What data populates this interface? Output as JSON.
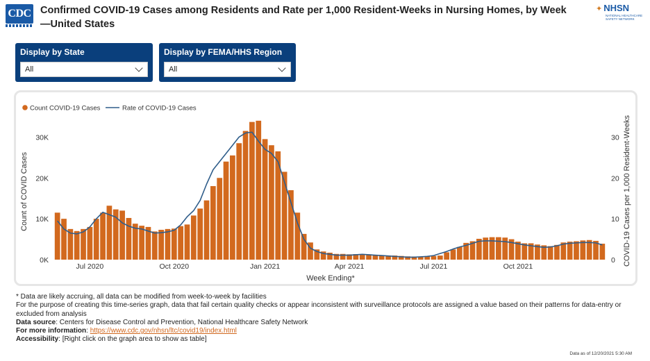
{
  "header": {
    "logo_text": "CDC",
    "title": "Confirmed COVID-19 Cases among Residents and Rate per 1,000 Resident-Weeks in Nursing Homes, by Week—United States",
    "nhsn_text": "NHSN",
    "nhsn_subtext": "NATIONAL HEALTHCARE SAFETY NETWORK"
  },
  "filters": {
    "state": {
      "label": "Display by State",
      "value": "All"
    },
    "region": {
      "label": "Display by FEMA/HHS Region",
      "value": "All"
    }
  },
  "colors": {
    "bar": "#d2691e",
    "line": "#2f5d8a",
    "filter_bg": "#0a3f7c"
  },
  "chart_data": {
    "type": "bar",
    "xlabel": "Week Ending*",
    "ylabel": "Count of COVID Cases",
    "ylabel_right": "COVID-19 Cases per 1,000 Resident-Weeks",
    "ylim": [
      0,
      35000
    ],
    "ylim_right": [
      0,
      35
    ],
    "yticks": [
      0,
      10000,
      20000,
      30000
    ],
    "yticklabels": [
      "0K",
      "10K",
      "20K",
      "30K"
    ],
    "yticks_right": [
      0,
      10,
      20,
      30
    ],
    "yticklabels_right": [
      "0",
      "10",
      "20",
      "30"
    ],
    "xticks": [
      {
        "index": 5,
        "label": "Jul 2020"
      },
      {
        "index": 18,
        "label": "Oct 2020"
      },
      {
        "index": 32,
        "label": "Jan 2021"
      },
      {
        "index": 45,
        "label": "Apr 2021"
      },
      {
        "index": 58,
        "label": "Jul 2021"
      },
      {
        "index": 71,
        "label": "Oct 2021"
      }
    ],
    "legend_position": "top-left",
    "grid": false,
    "series": [
      {
        "name": "Count COVID-19 Cases",
        "kind": "bar",
        "axis": "left",
        "values": [
          11500,
          10000,
          7500,
          7000,
          7500,
          8000,
          10000,
          11500,
          13200,
          12300,
          12000,
          10200,
          8800,
          8300,
          8000,
          6900,
          7300,
          7500,
          7600,
          8200,
          8600,
          10800,
          12500,
          14500,
          18000,
          20000,
          24000,
          25500,
          28500,
          31500,
          33700,
          34000,
          29500,
          28000,
          26500,
          21500,
          17000,
          11500,
          6300,
          4200,
          2500,
          2000,
          1700,
          1400,
          1400,
          1300,
          1350,
          1350,
          1300,
          1100,
          1100,
          1000,
          1000,
          900,
          800,
          750,
          700,
          800,
          900,
          1000,
          1800,
          2500,
          3100,
          4100,
          4500,
          5100,
          5400,
          5500,
          5500,
          5400,
          5000,
          4400,
          4000,
          4000,
          3700,
          3500,
          3300,
          3600,
          4200,
          4400,
          4500,
          4700,
          4800,
          4600,
          3900
        ],
        "last_value_indices_note": ""
      },
      {
        "name": "Rate of COVID-19 Cases",
        "kind": "line",
        "axis": "right",
        "values": [
          9.5,
          7.5,
          6.5,
          6.3,
          6.8,
          8.0,
          10.0,
          11.6,
          11.0,
          10.4,
          9.0,
          8.2,
          7.7,
          7.5,
          7.0,
          6.5,
          6.6,
          6.8,
          7.2,
          8.5,
          10.5,
          12.0,
          14.5,
          18.5,
          22.0,
          24.0,
          26.0,
          28.0,
          30.0,
          31.0,
          31.2,
          29.0,
          27.0,
          26.0,
          24.0,
          19.0,
          14.0,
          9.0,
          5.0,
          2.8,
          2.0,
          1.5,
          1.3,
          1.1,
          1.1,
          1.1,
          1.2,
          1.3,
          1.2,
          1.1,
          1.0,
          0.9,
          0.8,
          0.7,
          0.6,
          0.6,
          0.7,
          0.8,
          1.0,
          1.5,
          2.0,
          2.6,
          3.1,
          3.5,
          4.0,
          4.5,
          4.6,
          4.6,
          4.5,
          4.4,
          4.2,
          3.9,
          3.6,
          3.4,
          3.2,
          3.0,
          3.1,
          3.4,
          3.8,
          4.0,
          4.1,
          4.2,
          4.2,
          4.1,
          3.6
        ]
      }
    ]
  },
  "notes": {
    "line1": "* Data are likely accruing, all data can be modified from week-to-week by facilities",
    "line2": "For the purpose of creating this time-series graph, data that fail certain quality checks or appear inconsistent with surveillance protocols are assigned a value based on their patterns for data-entry or excluded from analysis",
    "source_label": "Data source",
    "source_text": ": Centers for Disease Control and Prevention, National Healthcare Safety Network",
    "info_label": "For more information",
    "info_sep": ": ",
    "info_link": "https://www.cdc.gov/nhsn/ltc/covid19/index.html",
    "access_label": "Accessibility",
    "access_text": ": [Right click on the graph area to show as table]"
  },
  "as_of": "Data as of 12/20/2021 5:30 AM"
}
